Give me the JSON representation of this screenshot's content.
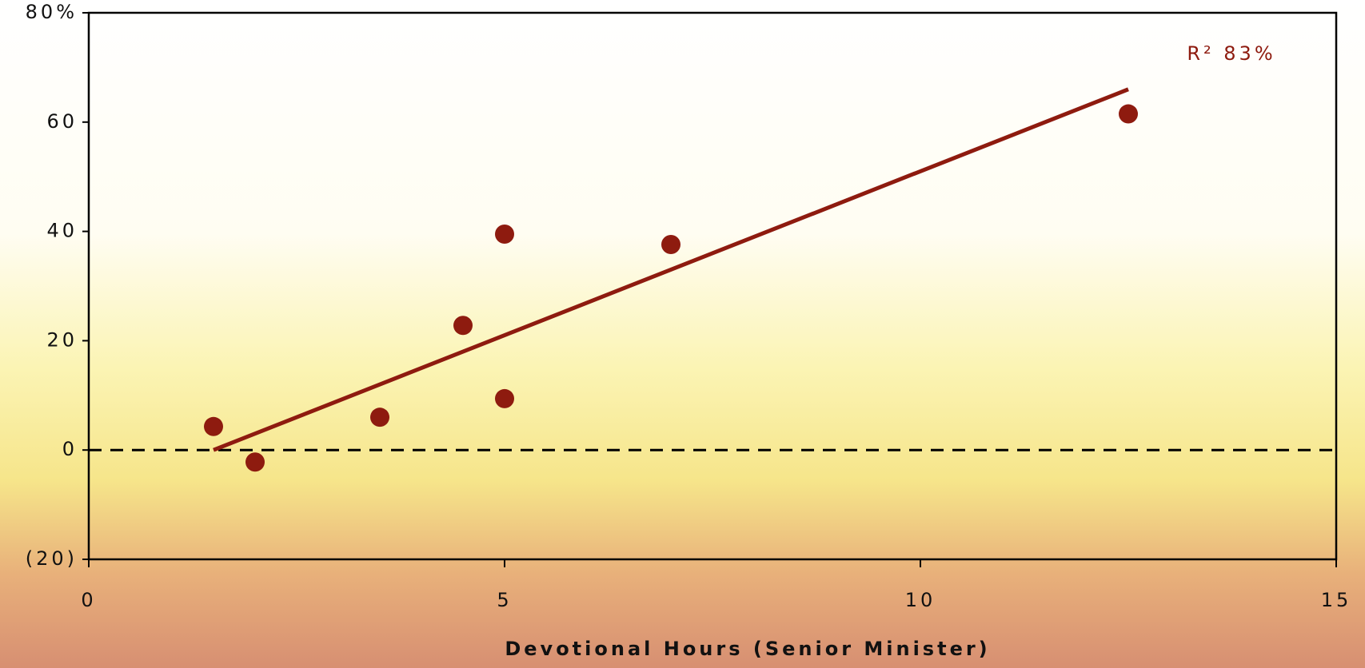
{
  "chart_data": {
    "type": "scatter",
    "x_label": "Devotional Hours (Senior Minister)",
    "annotation": "R² 83%",
    "x": [
      1.5,
      2.0,
      3.5,
      4.5,
      5.0,
      5.0,
      7.0,
      12.5
    ],
    "values": [
      4.3,
      -2.2,
      6,
      22.8,
      39.5,
      9.4,
      37.6,
      61.5
    ],
    "color": "#8e1b0f",
    "trendline": {
      "x": [
        1.5,
        12.5
      ],
      "values": [
        0,
        66
      ],
      "color": "#8e1b0f"
    },
    "reference_line": 0,
    "xlim": [
      0,
      15
    ],
    "xticks": [
      0,
      5,
      10,
      15
    ],
    "ylim": [
      -20,
      80
    ],
    "yticks": [
      {
        "value": -20,
        "label": "(20)"
      },
      0,
      20,
      40,
      60,
      {
        "value": 80,
        "label": "80%"
      }
    ]
  }
}
